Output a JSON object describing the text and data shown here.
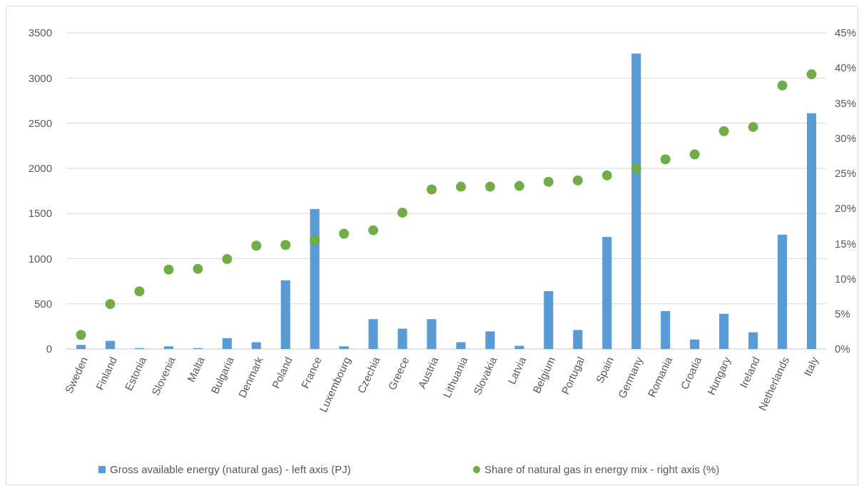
{
  "chart_data": {
    "type": "bar",
    "categories": [
      "Sweden",
      "Finland",
      "Estonia",
      "Slovenia",
      "Malta",
      "Bulgaria",
      "Denmark",
      "Poland",
      "France",
      "Luxembourg",
      "Czechia",
      "Greece",
      "Austria",
      "Lithuania",
      "Slovakia",
      "Latvia",
      "Belgium",
      "Portugal",
      "Spain",
      "Germany",
      "Romania",
      "Croatia",
      "Hungary",
      "Ireland",
      "Netherlands",
      "Italy"
    ],
    "series": [
      {
        "name": "Gross available energy (natural gas) - left axis (PJ)",
        "color": "#5b9bd5",
        "values": [
          45,
          90,
          10,
          30,
          10,
          120,
          75,
          760,
          1550,
          30,
          330,
          225,
          330,
          75,
          195,
          35,
          640,
          210,
          1240,
          3270,
          420,
          105,
          390,
          185,
          1265,
          2610
        ]
      },
      {
        "name": "Share of natural gas in energy mix - right axis (%)",
        "type": "scatter",
        "axis": "y2",
        "color": "#70ad47",
        "values": [
          2.0,
          6.4,
          8.2,
          11.3,
          11.4,
          12.8,
          14.7,
          14.8,
          15.5,
          16.4,
          16.9,
          19.4,
          22.7,
          23.1,
          23.1,
          23.2,
          23.8,
          24.0,
          24.7,
          25.7,
          27.0,
          27.7,
          31.0,
          31.6,
          37.5,
          39.1
        ]
      }
    ],
    "ylim": [
      0,
      3500
    ],
    "yticks": [
      0,
      500,
      1000,
      1500,
      2000,
      2500,
      3000,
      3500
    ],
    "y2lim": [
      0,
      45
    ],
    "y2ticks": [
      {
        "value": 0,
        "label": "0%"
      },
      {
        "value": 5,
        "label": "5%"
      },
      {
        "value": 10,
        "label": "10%"
      },
      {
        "value": 15,
        "label": "15%"
      },
      {
        "value": 20,
        "label": "20%"
      },
      {
        "value": 25,
        "label": "25%"
      },
      {
        "value": 30,
        "label": "30%"
      },
      {
        "value": 35,
        "label": "35%"
      },
      {
        "value": 40,
        "label": "40%"
      },
      {
        "value": 45,
        "label": "45%"
      }
    ],
    "grid": "y",
    "legend": "bottom",
    "marker": "circle"
  }
}
